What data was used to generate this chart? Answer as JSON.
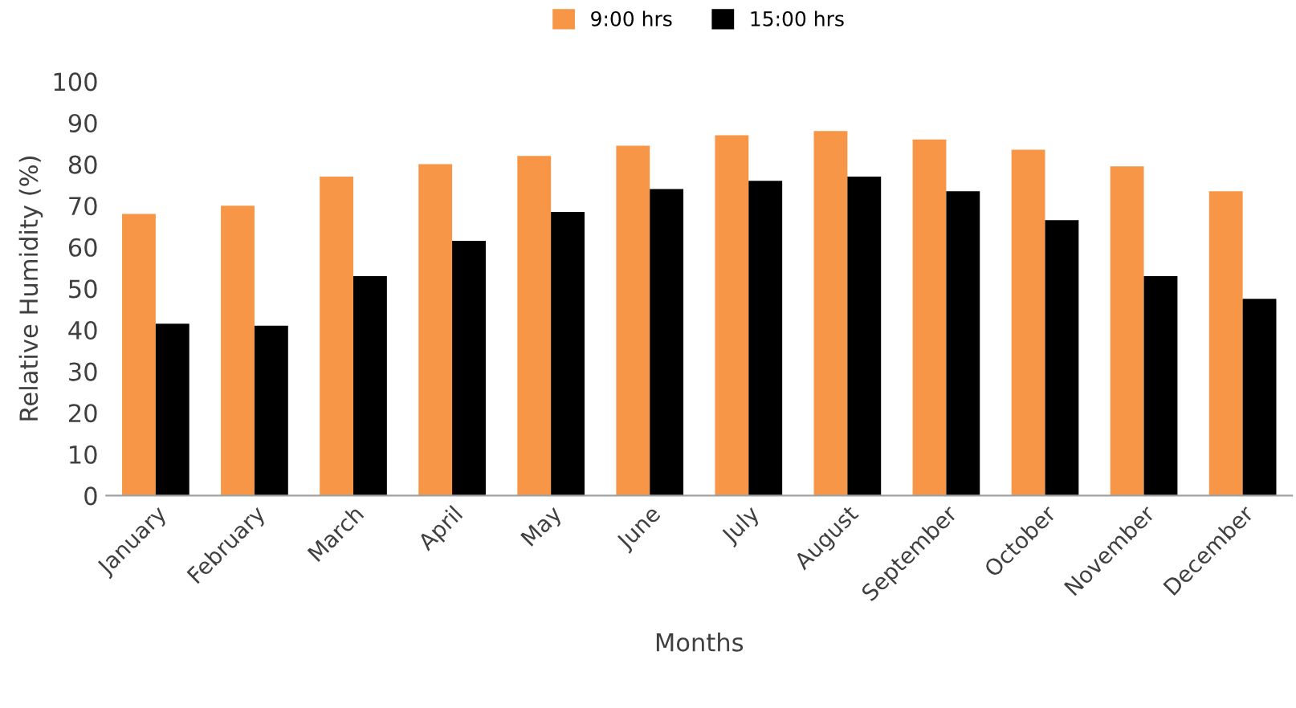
{
  "chart_data": {
    "type": "bar",
    "xlabel": "Months",
    "ylabel": "Relative Humidity (%)",
    "categories": [
      "January",
      "February",
      "March",
      "April",
      "May",
      "June",
      "July",
      "August",
      "September",
      "October",
      "November",
      "December"
    ],
    "series": [
      {
        "name": "9:00 hrs",
        "color": "#f79646",
        "values": [
          68,
          70,
          77,
          80,
          82,
          84.5,
          87,
          88,
          86,
          83.5,
          79.5,
          73.5
        ]
      },
      {
        "name": "15:00 hrs",
        "color": "#000000",
        "values": [
          41.5,
          41,
          53,
          61.5,
          68.5,
          74,
          76,
          77,
          73.5,
          66.5,
          53,
          47.5
        ]
      }
    ],
    "ylim": [
      0,
      100
    ],
    "yticks": [
      0,
      10,
      20,
      30,
      40,
      50,
      60,
      70,
      80,
      90,
      100
    ],
    "grid": false,
    "legend": "top"
  }
}
